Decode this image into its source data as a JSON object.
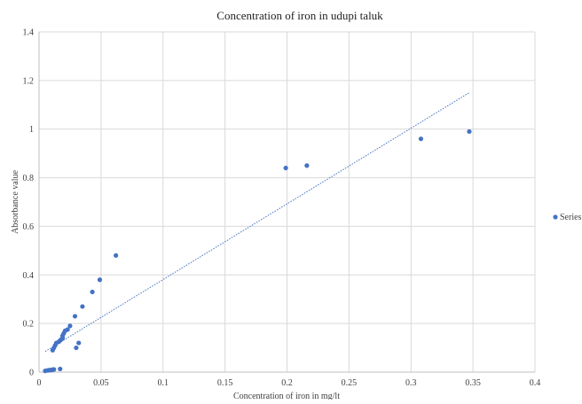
{
  "chart_data": {
    "type": "scatter",
    "title": "Concentration of iron in udupi taluk",
    "xlabel": "Concentration of iron in  mg/lt",
    "ylabel": "Absorbance value",
    "xlim": [
      0,
      0.4
    ],
    "ylim": [
      0,
      1.4
    ],
    "x_ticks": [
      "0",
      "0.05",
      "0.1",
      "0.15",
      "0.2",
      "0.25",
      "0.3",
      "0.35",
      "0.4"
    ],
    "y_ticks": [
      "0",
      "0.2",
      "0.4",
      "0.6",
      "0.8",
      "1",
      "1.2",
      "1.4"
    ],
    "grid": true,
    "legend_position": "right",
    "marker_color": "#4472c4",
    "trendline": {
      "style": "dotted",
      "type": "linear",
      "x": [
        0.005,
        0.347
      ],
      "y": [
        0.085,
        1.15
      ]
    },
    "series": [
      {
        "name": "Series",
        "points": [
          [
            0.005,
            0.005
          ],
          [
            0.007,
            0.007
          ],
          [
            0.008,
            0.008
          ],
          [
            0.009,
            0.008
          ],
          [
            0.01,
            0.009
          ],
          [
            0.011,
            0.01
          ],
          [
            0.012,
            0.011
          ],
          [
            0.017,
            0.013
          ],
          [
            0.011,
            0.09
          ],
          [
            0.012,
            0.1
          ],
          [
            0.013,
            0.11
          ],
          [
            0.014,
            0.12
          ],
          [
            0.016,
            0.125
          ],
          [
            0.017,
            0.13
          ],
          [
            0.018,
            0.135
          ],
          [
            0.019,
            0.14
          ],
          [
            0.019,
            0.15
          ],
          [
            0.02,
            0.16
          ],
          [
            0.021,
            0.17
          ],
          [
            0.023,
            0.175
          ],
          [
            0.025,
            0.19
          ],
          [
            0.029,
            0.23
          ],
          [
            0.03,
            0.1
          ],
          [
            0.032,
            0.12
          ],
          [
            0.035,
            0.27
          ],
          [
            0.043,
            0.33
          ],
          [
            0.049,
            0.38
          ],
          [
            0.062,
            0.48
          ],
          [
            0.199,
            0.84
          ],
          [
            0.216,
            0.85
          ],
          [
            0.308,
            0.96
          ],
          [
            0.347,
            0.99
          ]
        ]
      }
    ]
  }
}
